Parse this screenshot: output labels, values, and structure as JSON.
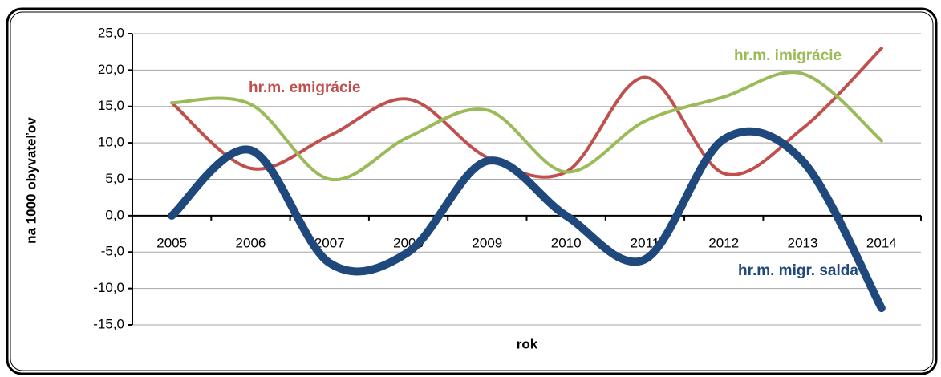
{
  "chart_data": {
    "type": "line",
    "y_label": "na 1000 obyvateľov",
    "x_label": "rok",
    "categories": [
      "2005",
      "2006",
      "2007",
      "2008",
      "2009",
      "2010",
      "2011",
      "2012",
      "2013",
      "2014"
    ],
    "series": [
      {
        "name": "hr.m. emigrácie",
        "color": "#c0504d",
        "values": [
          15.5,
          6.5,
          11,
          16,
          8,
          6,
          19,
          5.8,
          12,
          23
        ]
      },
      {
        "name": "hr.m. imigrácie",
        "color": "#9bbb59",
        "values": [
          15.5,
          15.3,
          5,
          10.8,
          14.5,
          6,
          13,
          16.3,
          19.5,
          10.3
        ]
      },
      {
        "name": "hr.m. migr. salda",
        "color": "#1f497d",
        "values": [
          0,
          9,
          -6.5,
          -5,
          7.5,
          0,
          -6,
          10.5,
          7.5,
          -12.7
        ]
      }
    ],
    "ylim": [
      -15,
      25
    ],
    "yticks": [
      {
        "value": -15,
        "label": "-15,0"
      },
      {
        "value": -10,
        "label": "-10,0"
      },
      {
        "value": -5,
        "label": "-5,0"
      },
      {
        "value": 0,
        "label": "0,0"
      },
      {
        "value": 5,
        "label": "5,0"
      },
      {
        "value": 10,
        "label": "10,0"
      },
      {
        "value": 15,
        "label": "15,0"
      },
      {
        "value": 20,
        "label": "20,0"
      },
      {
        "value": 25,
        "label": "25,0"
      }
    ],
    "grid": true
  }
}
